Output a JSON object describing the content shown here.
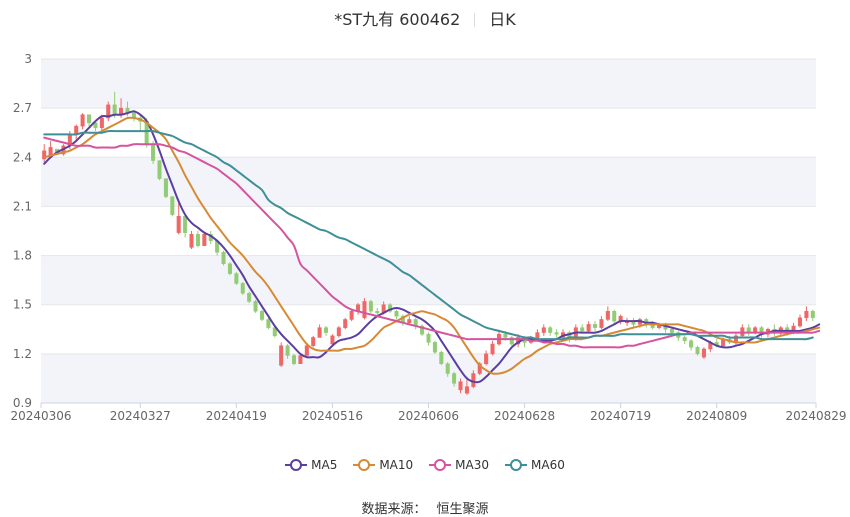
{
  "header": {
    "stock_label": "*ST九有 600462",
    "period_label": "日K"
  },
  "footer": {
    "source_label": "数据来源：",
    "source_name": "恒生聚源"
  },
  "colors": {
    "up": "#ee6666",
    "down": "#91cc75",
    "grid": "#e6e6e6",
    "band": "#f3f4fa",
    "axis_text": "#666666"
  },
  "chart_data": {
    "type": "candlestick",
    "title": "*ST九有 600462 日K",
    "ylim": [
      0.9,
      3.0
    ],
    "y_ticks": [
      "0.9",
      "1.2",
      "1.5",
      "1.8",
      "2.1",
      "2.4",
      "2.7",
      "3"
    ],
    "x_tick_labels": [
      "20240306",
      "20240327",
      "20240419",
      "20240516",
      "20240606",
      "20240628",
      "20240719",
      "20240809",
      "20240829"
    ],
    "x_tick_indices": [
      0,
      15,
      30,
      45,
      60,
      75,
      90,
      105,
      120
    ],
    "legend_position": "bottom",
    "grid": true,
    "candles": [
      [
        2.39,
        2.44,
        2.37,
        2.48
      ],
      [
        2.41,
        2.46,
        2.41,
        2.5
      ],
      [
        2.45,
        2.42,
        2.42,
        2.45
      ],
      [
        2.42,
        2.47,
        2.41,
        2.48
      ],
      [
        2.47,
        2.54,
        2.45,
        2.56
      ],
      [
        2.54,
        2.59,
        2.5,
        2.6
      ],
      [
        2.59,
        2.66,
        2.57,
        2.67
      ],
      [
        2.66,
        2.61,
        2.59,
        2.66
      ],
      [
        2.61,
        2.58,
        2.56,
        2.62
      ],
      [
        2.58,
        2.64,
        2.56,
        2.66
      ],
      [
        2.64,
        2.72,
        2.62,
        2.74
      ],
      [
        2.72,
        2.66,
        2.64,
        2.8
      ],
      [
        2.66,
        2.7,
        2.64,
        2.76
      ],
      [
        2.7,
        2.67,
        2.65,
        2.74
      ],
      [
        2.67,
        2.64,
        2.62,
        2.69
      ],
      [
        2.64,
        2.62,
        2.56,
        2.66
      ],
      [
        2.62,
        2.48,
        2.46,
        2.64
      ],
      [
        2.48,
        2.38,
        2.36,
        2.5
      ],
      [
        2.38,
        2.27,
        2.26,
        2.38
      ],
      [
        2.27,
        2.16,
        2.15,
        2.27
      ],
      [
        2.16,
        2.05,
        2.04,
        2.16
      ],
      [
        1.94,
        2.04,
        1.93,
        2.14
      ],
      [
        2.04,
        1.94,
        1.91,
        2.05
      ],
      [
        1.85,
        1.93,
        1.84,
        1.95
      ],
      [
        1.93,
        1.86,
        1.85,
        1.95
      ],
      [
        1.86,
        1.93,
        1.86,
        1.94
      ],
      [
        1.93,
        1.89,
        1.87,
        1.95
      ],
      [
        1.89,
        1.82,
        1.8,
        1.9
      ],
      [
        1.82,
        1.75,
        1.74,
        1.83
      ],
      [
        1.75,
        1.69,
        1.68,
        1.76
      ],
      [
        1.69,
        1.63,
        1.62,
        1.7
      ],
      [
        1.63,
        1.57,
        1.56,
        1.64
      ],
      [
        1.57,
        1.52,
        1.51,
        1.58
      ],
      [
        1.52,
        1.46,
        1.45,
        1.53
      ],
      [
        1.46,
        1.41,
        1.4,
        1.47
      ],
      [
        1.41,
        1.36,
        1.35,
        1.42
      ],
      [
        1.36,
        1.31,
        1.3,
        1.37
      ],
      [
        1.13,
        1.25,
        1.12,
        1.27
      ],
      [
        1.25,
        1.19,
        1.17,
        1.26
      ],
      [
        1.19,
        1.14,
        1.13,
        1.2
      ],
      [
        1.14,
        1.19,
        1.14,
        1.2
      ],
      [
        1.19,
        1.25,
        1.19,
        1.26
      ],
      [
        1.25,
        1.3,
        1.24,
        1.31
      ],
      [
        1.3,
        1.36,
        1.3,
        1.38
      ],
      [
        1.36,
        1.33,
        1.31,
        1.37
      ],
      [
        1.26,
        1.31,
        1.25,
        1.32
      ],
      [
        1.31,
        1.36,
        1.3,
        1.37
      ],
      [
        1.36,
        1.41,
        1.35,
        1.42
      ],
      [
        1.41,
        1.46,
        1.4,
        1.47
      ],
      [
        1.46,
        1.5,
        1.44,
        1.51
      ],
      [
        1.42,
        1.52,
        1.41,
        1.54
      ],
      [
        1.52,
        1.46,
        1.45,
        1.53
      ],
      [
        1.46,
        1.45,
        1.43,
        1.48
      ],
      [
        1.45,
        1.5,
        1.44,
        1.52
      ],
      [
        1.5,
        1.46,
        1.45,
        1.51
      ],
      [
        1.46,
        1.43,
        1.41,
        1.47
      ],
      [
        1.43,
        1.39,
        1.37,
        1.44
      ],
      [
        1.39,
        1.41,
        1.38,
        1.43
      ],
      [
        1.41,
        1.37,
        1.35,
        1.42
      ],
      [
        1.37,
        1.32,
        1.31,
        1.38
      ],
      [
        1.32,
        1.27,
        1.25,
        1.33
      ],
      [
        1.27,
        1.21,
        1.2,
        1.28
      ],
      [
        1.21,
        1.14,
        1.13,
        1.22
      ],
      [
        1.14,
        1.08,
        1.06,
        1.15
      ],
      [
        1.08,
        1.02,
        1.0,
        1.09
      ],
      [
        0.98,
        1.03,
        0.96,
        1.05
      ],
      [
        0.96,
        1.0,
        0.95,
        1.06
      ],
      [
        1.0,
        1.08,
        0.99,
        1.1
      ],
      [
        1.08,
        1.14,
        1.07,
        1.15
      ],
      [
        1.14,
        1.2,
        1.13,
        1.22
      ],
      [
        1.2,
        1.26,
        1.19,
        1.28
      ],
      [
        1.26,
        1.32,
        1.25,
        1.34
      ],
      [
        1.32,
        1.3,
        1.28,
        1.34
      ],
      [
        1.3,
        1.26,
        1.25,
        1.31
      ],
      [
        1.26,
        1.3,
        1.24,
        1.32
      ],
      [
        1.3,
        1.27,
        1.24,
        1.31
      ],
      [
        1.27,
        1.29,
        1.26,
        1.31
      ],
      [
        1.29,
        1.33,
        1.28,
        1.35
      ],
      [
        1.33,
        1.36,
        1.31,
        1.38
      ],
      [
        1.36,
        1.33,
        1.31,
        1.37
      ],
      [
        1.33,
        1.32,
        1.3,
        1.35
      ],
      [
        1.3,
        1.33,
        1.29,
        1.35
      ],
      [
        1.33,
        1.29,
        1.27,
        1.34
      ],
      [
        1.29,
        1.36,
        1.28,
        1.38
      ],
      [
        1.36,
        1.34,
        1.33,
        1.38
      ],
      [
        1.34,
        1.38,
        1.33,
        1.4
      ],
      [
        1.38,
        1.36,
        1.34,
        1.4
      ],
      [
        1.36,
        1.41,
        1.35,
        1.43
      ],
      [
        1.41,
        1.46,
        1.4,
        1.49
      ],
      [
        1.46,
        1.4,
        1.38,
        1.47
      ],
      [
        1.4,
        1.43,
        1.38,
        1.44
      ],
      [
        1.39,
        1.4,
        1.37,
        1.42
      ],
      [
        1.4,
        1.38,
        1.36,
        1.42
      ],
      [
        1.38,
        1.41,
        1.36,
        1.42
      ],
      [
        1.41,
        1.38,
        1.36,
        1.42
      ],
      [
        1.38,
        1.36,
        1.35,
        1.4
      ],
      [
        1.36,
        1.38,
        1.35,
        1.39
      ],
      [
        1.38,
        1.35,
        1.33,
        1.39
      ],
      [
        1.35,
        1.33,
        1.32,
        1.36
      ],
      [
        1.33,
        1.3,
        1.28,
        1.34
      ],
      [
        1.3,
        1.28,
        1.26,
        1.31
      ],
      [
        1.28,
        1.24,
        1.22,
        1.29
      ],
      [
        1.24,
        1.2,
        1.19,
        1.25
      ],
      [
        1.18,
        1.23,
        1.17,
        1.24
      ],
      [
        1.23,
        1.27,
        1.21,
        1.28
      ],
      [
        1.27,
        1.25,
        1.24,
        1.29
      ],
      [
        1.25,
        1.29,
        1.24,
        1.3
      ],
      [
        1.29,
        1.27,
        1.26,
        1.31
      ],
      [
        1.27,
        1.31,
        1.25,
        1.33
      ],
      [
        1.31,
        1.36,
        1.3,
        1.38
      ],
      [
        1.36,
        1.33,
        1.31,
        1.38
      ],
      [
        1.33,
        1.36,
        1.32,
        1.37
      ],
      [
        1.36,
        1.32,
        1.3,
        1.37
      ],
      [
        1.32,
        1.35,
        1.3,
        1.36
      ],
      [
        1.35,
        1.33,
        1.31,
        1.38
      ],
      [
        1.33,
        1.36,
        1.31,
        1.37
      ],
      [
        1.36,
        1.33,
        1.31,
        1.38
      ],
      [
        1.33,
        1.37,
        1.32,
        1.39
      ],
      [
        1.37,
        1.42,
        1.36,
        1.44
      ],
      [
        1.42,
        1.46,
        1.4,
        1.49
      ],
      [
        1.46,
        1.42,
        1.4,
        1.47
      ]
    ],
    "series": [
      {
        "name": "MA5",
        "color": "#5b3fa0",
        "values": [
          2.36,
          2.4,
          2.43,
          2.45,
          2.47,
          2.5,
          2.54,
          2.58,
          2.62,
          2.65,
          2.65,
          2.66,
          2.66,
          2.67,
          2.68,
          2.66,
          2.62,
          2.54,
          2.44,
          2.33,
          2.23,
          2.13,
          2.05,
          2.0,
          1.97,
          1.94,
          1.92,
          1.89,
          1.85,
          1.8,
          1.74,
          1.68,
          1.61,
          1.55,
          1.49,
          1.43,
          1.37,
          1.32,
          1.28,
          1.24,
          1.2,
          1.18,
          1.18,
          1.18,
          1.21,
          1.25,
          1.28,
          1.29,
          1.3,
          1.32,
          1.36,
          1.4,
          1.43,
          1.45,
          1.47,
          1.48,
          1.47,
          1.45,
          1.43,
          1.41,
          1.38,
          1.34,
          1.28,
          1.22,
          1.16,
          1.1,
          1.05,
          1.03,
          1.03,
          1.06,
          1.1,
          1.14,
          1.19,
          1.24,
          1.27,
          1.29,
          1.29,
          1.29,
          1.28,
          1.28,
          1.29,
          1.31,
          1.32,
          1.33,
          1.33,
          1.33,
          1.33,
          1.34,
          1.36,
          1.38,
          1.4,
          1.4,
          1.4,
          1.4,
          1.39,
          1.39,
          1.38,
          1.37,
          1.36,
          1.35,
          1.34,
          1.33,
          1.31,
          1.29,
          1.27,
          1.25,
          1.24,
          1.24,
          1.25,
          1.26,
          1.28,
          1.3,
          1.32,
          1.33,
          1.34,
          1.34,
          1.34,
          1.34,
          1.34,
          1.35,
          1.36,
          1.38
        ]
      },
      {
        "name": "MA10",
        "color": "#d78a35",
        "values": [
          2.4,
          2.41,
          2.42,
          2.43,
          2.44,
          2.46,
          2.48,
          2.51,
          2.54,
          2.56,
          2.58,
          2.6,
          2.62,
          2.64,
          2.64,
          2.63,
          2.61,
          2.58,
          2.55,
          2.51,
          2.44,
          2.37,
          2.29,
          2.22,
          2.15,
          2.09,
          2.03,
          1.98,
          1.93,
          1.88,
          1.84,
          1.8,
          1.75,
          1.7,
          1.66,
          1.61,
          1.55,
          1.49,
          1.43,
          1.37,
          1.31,
          1.26,
          1.23,
          1.22,
          1.22,
          1.22,
          1.22,
          1.23,
          1.23,
          1.24,
          1.25,
          1.28,
          1.32,
          1.36,
          1.38,
          1.4,
          1.42,
          1.44,
          1.45,
          1.46,
          1.45,
          1.44,
          1.42,
          1.4,
          1.36,
          1.3,
          1.24,
          1.18,
          1.13,
          1.1,
          1.08,
          1.08,
          1.09,
          1.11,
          1.14,
          1.17,
          1.19,
          1.22,
          1.24,
          1.26,
          1.27,
          1.28,
          1.29,
          1.29,
          1.29,
          1.3,
          1.31,
          1.31,
          1.32,
          1.33,
          1.34,
          1.35,
          1.36,
          1.37,
          1.38,
          1.38,
          1.38,
          1.38,
          1.38,
          1.38,
          1.37,
          1.36,
          1.35,
          1.34,
          1.32,
          1.3,
          1.29,
          1.28,
          1.27,
          1.27,
          1.27,
          1.27,
          1.28,
          1.29,
          1.3,
          1.31,
          1.32,
          1.33,
          1.33,
          1.34,
          1.35,
          1.36
        ]
      },
      {
        "name": "MA30",
        "color": "#d6549e",
        "values": [
          2.52,
          2.51,
          2.5,
          2.49,
          2.48,
          2.47,
          2.47,
          2.47,
          2.46,
          2.46,
          2.46,
          2.46,
          2.47,
          2.47,
          2.48,
          2.48,
          2.48,
          2.48,
          2.48,
          2.47,
          2.46,
          2.44,
          2.43,
          2.41,
          2.39,
          2.37,
          2.35,
          2.33,
          2.3,
          2.27,
          2.24,
          2.2,
          2.16,
          2.12,
          2.08,
          2.04,
          2.0,
          1.96,
          1.91,
          1.86,
          1.75,
          1.71,
          1.67,
          1.63,
          1.59,
          1.55,
          1.52,
          1.49,
          1.47,
          1.46,
          1.45,
          1.44,
          1.43,
          1.42,
          1.41,
          1.4,
          1.39,
          1.38,
          1.37,
          1.36,
          1.35,
          1.34,
          1.33,
          1.32,
          1.31,
          1.3,
          1.29,
          1.29,
          1.29,
          1.29,
          1.29,
          1.29,
          1.29,
          1.29,
          1.29,
          1.29,
          1.28,
          1.28,
          1.27,
          1.27,
          1.26,
          1.26,
          1.25,
          1.25,
          1.24,
          1.24,
          1.24,
          1.24,
          1.24,
          1.24,
          1.24,
          1.25,
          1.25,
          1.26,
          1.27,
          1.28,
          1.29,
          1.3,
          1.31,
          1.32,
          1.32,
          1.33,
          1.33,
          1.33,
          1.33,
          1.33,
          1.33,
          1.33,
          1.33,
          1.33,
          1.33,
          1.33,
          1.33,
          1.33,
          1.33,
          1.33,
          1.33,
          1.33,
          1.33,
          1.33,
          1.33,
          1.34
        ]
      },
      {
        "name": "MA60",
        "color": "#3f8f96",
        "values": [
          2.54,
          2.54,
          2.54,
          2.54,
          2.54,
          2.54,
          2.55,
          2.55,
          2.55,
          2.55,
          2.56,
          2.56,
          2.56,
          2.56,
          2.56,
          2.56,
          2.56,
          2.56,
          2.55,
          2.54,
          2.53,
          2.51,
          2.49,
          2.48,
          2.46,
          2.44,
          2.42,
          2.4,
          2.37,
          2.35,
          2.32,
          2.29,
          2.26,
          2.23,
          2.2,
          2.14,
          2.11,
          2.09,
          2.06,
          2.04,
          2.02,
          2.0,
          1.98,
          1.96,
          1.95,
          1.93,
          1.91,
          1.9,
          1.88,
          1.86,
          1.84,
          1.82,
          1.8,
          1.78,
          1.76,
          1.73,
          1.7,
          1.68,
          1.65,
          1.62,
          1.59,
          1.56,
          1.53,
          1.5,
          1.47,
          1.44,
          1.42,
          1.4,
          1.38,
          1.36,
          1.35,
          1.34,
          1.33,
          1.32,
          1.31,
          1.3,
          1.3,
          1.29,
          1.29,
          1.29,
          1.29,
          1.29,
          1.3,
          1.3,
          1.3,
          1.3,
          1.31,
          1.31,
          1.31,
          1.31,
          1.32,
          1.32,
          1.32,
          1.32,
          1.32,
          1.32,
          1.32,
          1.32,
          1.32,
          1.32,
          1.32,
          1.32,
          1.31,
          1.31,
          1.31,
          1.31,
          1.31,
          1.3,
          1.3,
          1.3,
          1.3,
          1.3,
          1.29,
          1.29,
          1.29,
          1.29,
          1.29,
          1.29,
          1.29,
          1.29,
          1.3
        ]
      }
    ]
  }
}
